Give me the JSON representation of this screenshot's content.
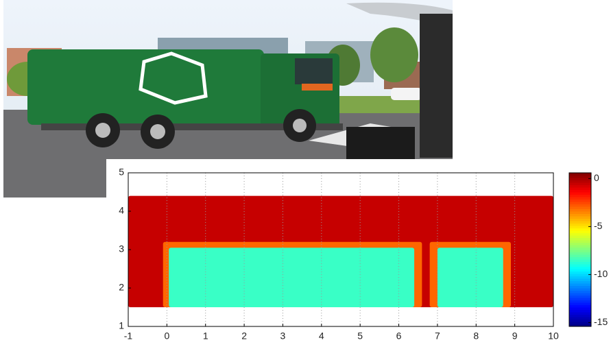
{
  "chart_data": {
    "type": "heatmap",
    "xlim": [
      -1,
      10
    ],
    "xticks": [
      -1,
      0,
      1,
      2,
      3,
      4,
      5,
      6,
      7,
      8,
      9,
      10
    ],
    "ylim": [
      1,
      5
    ],
    "yticks": [
      1,
      2,
      3,
      4,
      5
    ],
    "grid": true,
    "colormap": "jet",
    "clim": [
      -15.4,
      0.6
    ],
    "cticks": [
      0,
      -5,
      -10,
      -15
    ],
    "regions": [
      {
        "x": [
          -1,
          10
        ],
        "y": [
          1.5,
          4.4
        ],
        "value": -0.5
      },
      {
        "x": [
          -0.1,
          6.6
        ],
        "y": [
          1.5,
          3.2
        ],
        "value": -3
      },
      {
        "x": [
          6.8,
          8.9
        ],
        "y": [
          1.5,
          3.2
        ],
        "value": -3
      },
      {
        "x": [
          0.05,
          6.4
        ],
        "y": [
          1.5,
          3.05
        ],
        "value": -8.5
      },
      {
        "x": [
          7.0,
          8.7
        ],
        "y": [
          1.5,
          3.05
        ],
        "value": -8.5
      }
    ]
  }
}
